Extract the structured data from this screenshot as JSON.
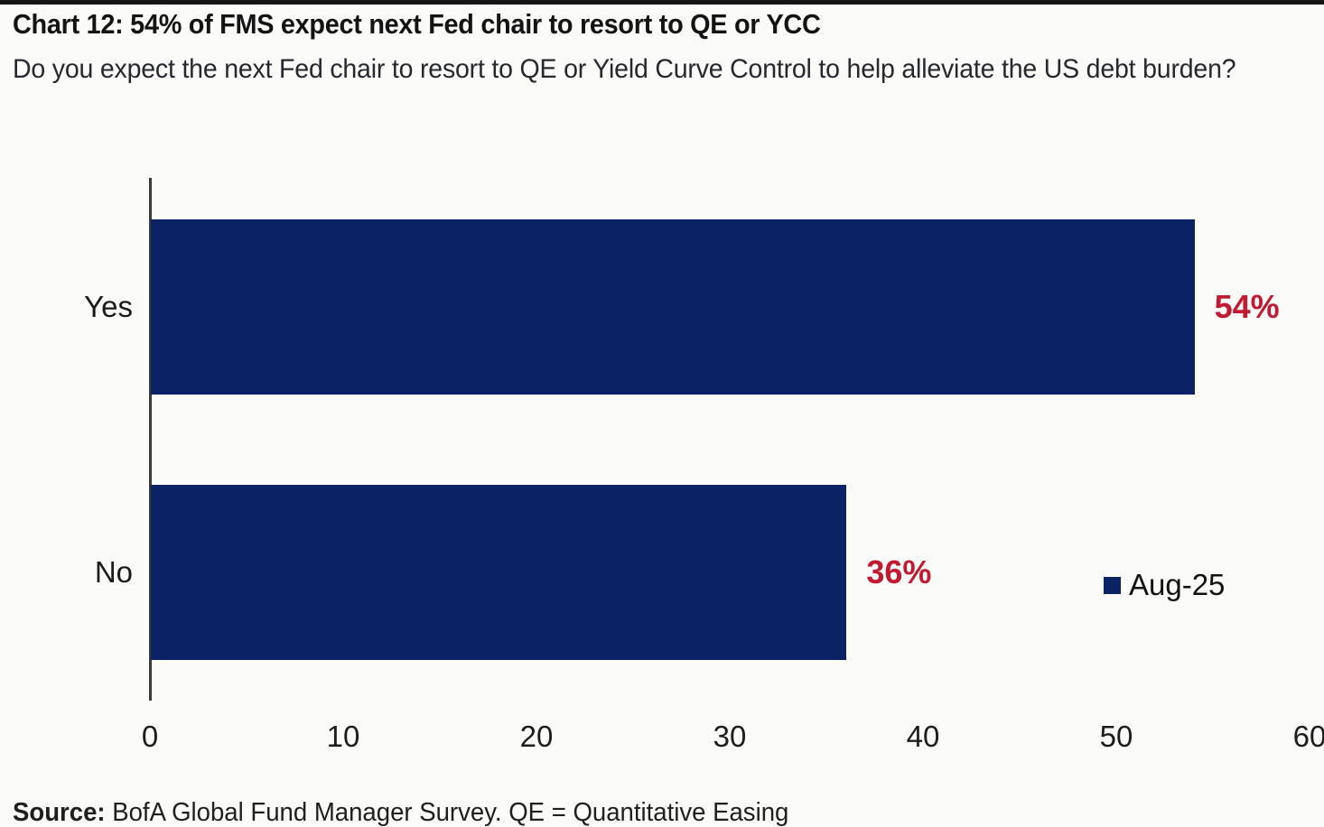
{
  "page": {
    "title": "Chart 12: 54% of FMS expect next Fed chair to resort to QE or YCC",
    "subtitle": "Do you expect the next Fed chair to resort to QE or Yield Curve Control to help alleviate the US debt burden?",
    "source_label": "Source:",
    "source_text": " BofA Global Fund Manager Survey. QE = Quantitative Easing"
  },
  "colors": {
    "bar": "#0b2365",
    "value_label": "#c11a32",
    "axis_line": "#3a3a3a",
    "background": "#fbfbf9"
  },
  "chart_data": {
    "type": "bar",
    "orientation": "horizontal",
    "title": "Chart 12: 54% of FMS expect next Fed chair to resort to QE or YCC",
    "categories": [
      "Yes",
      "No"
    ],
    "values": [
      54,
      36
    ],
    "value_labels": [
      "54%",
      "36%"
    ],
    "series": [
      {
        "name": "Aug-25",
        "color": "#0b2365",
        "values": [
          54,
          36
        ]
      }
    ],
    "legend": {
      "label": "Aug-25",
      "position": "center-right"
    },
    "xlabel": "",
    "ylabel": "",
    "xlim": [
      0,
      60
    ],
    "xticks": [
      "0",
      "10",
      "20",
      "30",
      "40",
      "50",
      "60"
    ],
    "grid": false
  }
}
